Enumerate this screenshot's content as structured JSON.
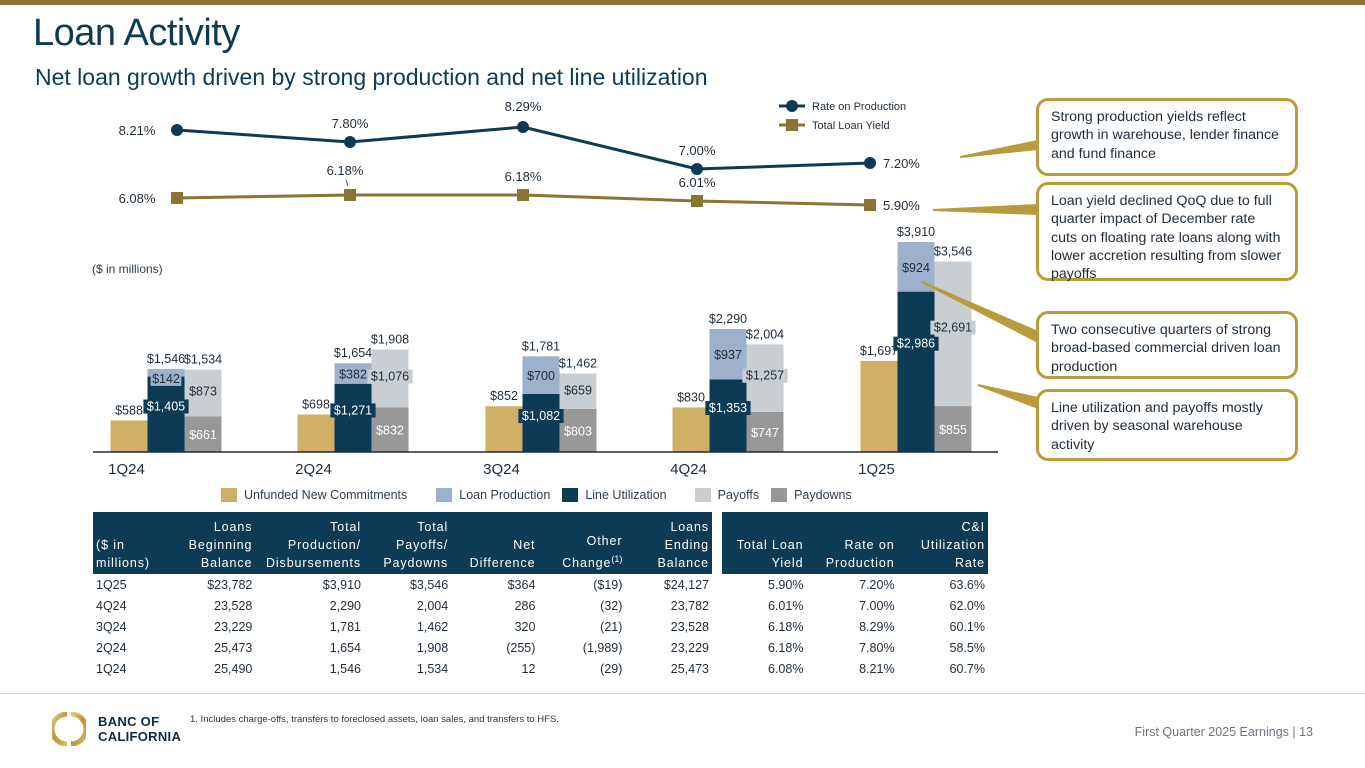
{
  "header": {
    "title": "Loan Activity",
    "subtitle": "Net loan growth driven by strong production and net line utilization"
  },
  "colors": {
    "brand_gold": "#8a7434",
    "navy": "#0d3b56",
    "unfunded": "#cfae66",
    "loan_production": "#9db1cc",
    "line_utilization": "#0d3b56",
    "payoffs": "#c9ced2",
    "paydowns": "#989898",
    "rate_line": "#0d3b56",
    "yield_line": "#8a7434",
    "callout_border": "#b99b3c"
  },
  "chart_data": [
    {
      "type": "line",
      "categories": [
        "1Q24",
        "2Q24",
        "3Q24",
        "4Q24",
        "1Q25"
      ],
      "series": [
        {
          "name": "Rate on Production",
          "values": [
            8.21,
            7.8,
            8.29,
            7.0,
            7.2
          ],
          "labels": [
            "8.21%",
            "7.80%",
            "8.29%",
            "7.00%",
            "7.20%"
          ],
          "marker": "circle"
        },
        {
          "name": "Total Loan Yield",
          "values": [
            6.08,
            6.18,
            6.18,
            6.01,
            5.9
          ],
          "labels": [
            "6.08%",
            "6.18%",
            "6.18%",
            "6.01%",
            "5.90%"
          ],
          "marker": "square"
        }
      ],
      "legend": "top-right",
      "grid": false
    },
    {
      "type": "bar",
      "title": "",
      "units_note": "($ in millions)",
      "categories": [
        "1Q24",
        "2Q24",
        "3Q24",
        "4Q24",
        "1Q25"
      ],
      "series": [
        {
          "name": "Unfunded New Commitments",
          "values": [
            588,
            698,
            852,
            830,
            1697
          ],
          "labels": [
            "$588",
            "$698",
            "$852",
            "$830",
            "$1,697"
          ]
        },
        {
          "name": "Line Utilization",
          "values": [
            1405,
            1271,
            1082,
            1353,
            2986
          ],
          "labels": [
            "$1,405",
            "$1,271",
            "$1,082",
            "$1,353",
            "$2,986"
          ],
          "stack": "production"
        },
        {
          "name": "Loan Production",
          "values": [
            142,
            382,
            700,
            937,
            924
          ],
          "labels": [
            "$142",
            "$382",
            "$700",
            "$937",
            "$924"
          ],
          "stack": "production"
        },
        {
          "name": "Paydowns",
          "values": [
            661,
            832,
            803,
            747,
            855
          ],
          "labels": [
            "$661",
            "$832",
            "$803",
            "$747",
            "$855"
          ],
          "stack": "payoffs"
        },
        {
          "name": "Payoffs",
          "values": [
            873,
            1076,
            659,
            1257,
            2691
          ],
          "labels": [
            "$873",
            "$1,076",
            "$659",
            "$1,257",
            "$2,691"
          ],
          "stack": "payoffs"
        }
      ],
      "stack_totals": {
        "production": {
          "values": [
            1546,
            1654,
            1781,
            2290,
            3910
          ],
          "labels": [
            "$1,546",
            "$1,654",
            "$1,781",
            "$2,290",
            "$3,910"
          ]
        },
        "payoffs": {
          "values": [
            1534,
            1908,
            1462,
            2004,
            3546
          ],
          "labels": [
            "$1,534",
            "$1,908",
            "$1,462",
            "$2,004",
            "$3,546"
          ]
        }
      },
      "ylim": [
        0,
        4000
      ],
      "legend": "bottom",
      "legend_order": [
        "Unfunded New Commitments",
        "Loan Production",
        "Line Utilization",
        "Payoffs",
        "Paydowns"
      ],
      "grid": false
    },
    {
      "type": "table",
      "columns": [
        "($ in millions)",
        "Loans Beginning Balance",
        "Total Production/ Disbursements",
        "Total Payoffs/ Paydowns",
        "Net Difference",
        "Other Change(1)",
        "Loans Ending Balance"
      ],
      "rows": [
        [
          "1Q25",
          "$23,782",
          "$3,910",
          "$3,546",
          "$364",
          "($19)",
          "$24,127"
        ],
        [
          "4Q24",
          "23,528",
          "2,290",
          "2,004",
          "286",
          "(32)",
          "23,782"
        ],
        [
          "3Q24",
          "23,229",
          "1,781",
          "1,462",
          "320",
          "(21)",
          "23,528"
        ],
        [
          "2Q24",
          "25,473",
          "1,654",
          "1,908",
          "(255)",
          "(1,989)",
          "23,229"
        ],
        [
          "1Q24",
          "25,490",
          "1,546",
          "1,534",
          "12",
          "(29)",
          "25,473"
        ]
      ]
    },
    {
      "type": "table",
      "columns": [
        "Total Loan Yield",
        "Rate on Production",
        "C&I Utilization Rate"
      ],
      "rows": [
        [
          "5.90%",
          "7.20%",
          "63.6%"
        ],
        [
          "6.01%",
          "7.00%",
          "62.0%"
        ],
        [
          "6.18%",
          "8.29%",
          "60.1%"
        ],
        [
          "6.18%",
          "7.80%",
          "58.5%"
        ],
        [
          "6.08%",
          "8.21%",
          "60.7%"
        ]
      ]
    }
  ],
  "table_left": {
    "headers": [
      [
        "",
        "",
        "($ in",
        "millions)"
      ],
      [
        "Loans",
        "Beginning",
        "Balance"
      ],
      [
        "Total",
        "Production/",
        "Disbursements"
      ],
      [
        "Total",
        "Payoffs/",
        "Paydowns"
      ],
      [
        "Net",
        "Difference"
      ],
      [
        "Other",
        "Change",
        "(1)"
      ],
      [
        "Loans",
        "Ending",
        "Balance"
      ]
    ],
    "rows": [
      [
        "1Q25",
        "$23,782",
        "$3,910",
        "$3,546",
        "$364",
        "($19)",
        "$24,127"
      ],
      [
        "4Q24",
        "23,528",
        "2,290",
        "2,004",
        "286",
        "(32)",
        "23,782"
      ],
      [
        "3Q24",
        "23,229",
        "1,781",
        "1,462",
        "320",
        "(21)",
        "23,528"
      ],
      [
        "2Q24",
        "25,473",
        "1,654",
        "1,908",
        "(255)",
        "(1,989)",
        "23,229"
      ],
      [
        "1Q24",
        "25,490",
        "1,546",
        "1,534",
        "12",
        "(29)",
        "25,473"
      ]
    ]
  },
  "table_right": {
    "headers": [
      [
        "Total Loan",
        "Yield"
      ],
      [
        "Rate on",
        "Production"
      ],
      [
        "C&I",
        "Utilization",
        "Rate"
      ]
    ],
    "rows": [
      [
        "5.90%",
        "7.20%",
        "63.6%"
      ],
      [
        "6.01%",
        "7.00%",
        "62.0%"
      ],
      [
        "6.18%",
        "8.29%",
        "60.1%"
      ],
      [
        "6.18%",
        "7.80%",
        "58.5%"
      ],
      [
        "6.08%",
        "8.21%",
        "60.7%"
      ]
    ]
  },
  "callouts": [
    "Strong production yields reflect growth in warehouse, lender finance and fund finance",
    "Loan yield declined QoQ due to full quarter impact of December rate cuts on floating rate loans along with lower accretion resulting from slower payoffs",
    "Two consecutive quarters of strong broad-based commercial driven loan production",
    "Line utilization and payoffs mostly driven by seasonal warehouse activity"
  ],
  "footer": {
    "footnote": "1.  Includes charge-offs, transfers to foreclosed assets, loan sales, and transfers to HFS.",
    "logo_line1": "BANC OF",
    "logo_line2": "CALIFORNIA",
    "page_label": "First Quarter 2025 Earnings |  13"
  }
}
